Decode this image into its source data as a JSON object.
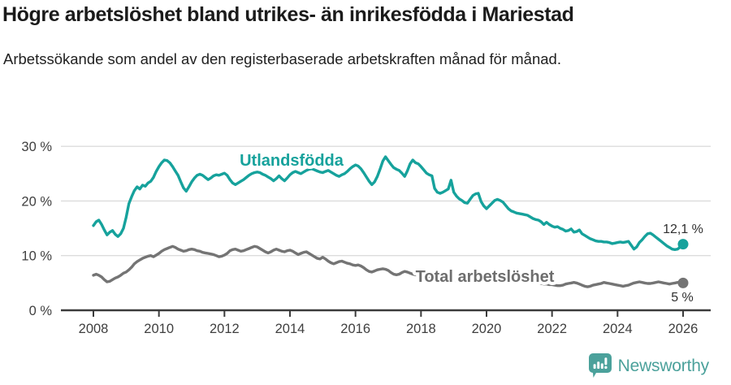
{
  "header": {
    "title": "Högre arbetslöshet bland utrikes- än inrikesfödda i Mariestad",
    "subtitle": "Arbetssökande som andel av den registerbaserade arbetskraften månad för månad."
  },
  "footer": {
    "brand": "Newsworthy"
  },
  "colors": {
    "teal": "#16a29c",
    "gray": "#747474",
    "gray_label": "#6e6e6e",
    "axis": "#3b3b3b",
    "grid": "#dcdcdc",
    "tick_text": "#3f3f3f",
    "end_label_text": "#2f2f2f",
    "logo_teal": "#4ba19b"
  },
  "chart_data": {
    "type": "line",
    "title": "Högre arbetslöshet bland utrikes- än inrikesfödda i Mariestad",
    "subtitle": "Arbetssökande som andel av den registerbaserade arbetskraften månad för månad.",
    "unit": "%",
    "grid": true,
    "legend_position": "inline-labels",
    "ylim": [
      0,
      32
    ],
    "xlim": [
      2007,
      2026.85
    ],
    "y_axis": {
      "ticks": [
        {
          "value": 0,
          "label": "0 %"
        },
        {
          "value": 10,
          "label": "10 %"
        },
        {
          "value": 20,
          "label": "20 %"
        },
        {
          "value": 30,
          "label": "30 %"
        }
      ]
    },
    "x_axis": {
      "ticks": [
        {
          "value": 2008,
          "label": "2008"
        },
        {
          "value": 2010,
          "label": "2010"
        },
        {
          "value": 2012,
          "label": "2012"
        },
        {
          "value": 2014,
          "label": "2014"
        },
        {
          "value": 2016,
          "label": "2016"
        },
        {
          "value": 2018,
          "label": "2018"
        },
        {
          "value": 2020,
          "label": "2020"
        },
        {
          "value": 2022,
          "label": "2022"
        },
        {
          "value": 2024,
          "label": "2024"
        },
        {
          "value": 2026,
          "label": "2026"
        }
      ]
    },
    "series": [
      {
        "id": "utlandsfodda",
        "name": "Utlandsfödda",
        "color": "#16a29c",
        "label_color": "#16a29c",
        "end_label": "12,1 %",
        "end_value": 12.1,
        "start_year": 2008,
        "points_per_year": 12,
        "values": [
          15.5,
          16.2,
          16.5,
          15.7,
          14.7,
          13.8,
          14.3,
          14.6,
          13.9,
          13.5,
          14.0,
          15.0,
          17.0,
          19.5,
          20.8,
          21.9,
          22.6,
          22.2,
          22.9,
          22.7,
          23.3,
          23.6,
          24.3,
          25.4,
          26.3,
          27.0,
          27.5,
          27.4,
          27.0,
          26.3,
          25.5,
          24.7,
          23.5,
          22.4,
          21.8,
          22.6,
          23.5,
          24.2,
          24.7,
          24.9,
          24.7,
          24.3,
          23.9,
          24.2,
          24.6,
          24.8,
          24.7,
          24.9,
          25.1,
          24.7,
          23.9,
          23.3,
          23.0,
          23.3,
          23.6,
          23.9,
          24.3,
          24.7,
          25.0,
          25.2,
          25.3,
          25.2,
          24.9,
          24.7,
          24.4,
          24.1,
          23.7,
          24.1,
          24.6,
          24.1,
          23.7,
          24.2,
          24.8,
          25.2,
          25.4,
          25.2,
          25.0,
          25.3,
          25.6,
          25.8,
          25.9,
          25.7,
          25.5,
          25.3,
          25.2,
          25.4,
          25.6,
          25.3,
          25.0,
          24.7,
          24.5,
          24.8,
          25.0,
          25.4,
          25.9,
          26.3,
          26.6,
          26.4,
          25.9,
          25.2,
          24.4,
          23.6,
          23.0,
          23.5,
          24.5,
          25.8,
          27.3,
          28.1,
          27.4,
          26.7,
          26.1,
          25.8,
          25.6,
          25.1,
          24.5,
          25.5,
          26.8,
          27.5,
          27.0,
          26.8,
          26.3,
          25.7,
          25.1,
          24.8,
          24.6,
          22.3,
          21.6,
          21.4,
          21.6,
          21.9,
          22.2,
          23.8,
          21.6,
          20.9,
          20.4,
          20.1,
          19.7,
          19.6,
          20.3,
          21.0,
          21.3,
          21.4,
          19.9,
          19.1,
          18.6,
          19.1,
          19.6,
          20.1,
          20.3,
          20.1,
          19.8,
          19.2,
          18.6,
          18.2,
          18.0,
          17.8,
          17.7,
          17.6,
          17.5,
          17.4,
          17.1,
          16.8,
          16.6,
          16.5,
          16.2,
          15.7,
          16.1,
          15.7,
          15.4,
          15.2,
          15.3,
          15.0,
          14.8,
          14.5,
          14.6,
          14.9,
          14.3,
          14.4,
          14.7,
          14.0,
          13.7,
          13.4,
          13.1,
          12.9,
          12.7,
          12.6,
          12.6,
          12.5,
          12.5,
          12.4,
          12.2,
          12.3,
          12.4,
          12.5,
          12.4,
          12.5,
          12.6,
          11.9,
          11.2,
          11.6,
          12.4,
          12.9,
          13.5,
          14.0,
          14.1,
          13.8,
          13.4,
          13.0,
          12.6,
          12.2,
          11.8,
          11.5,
          11.2,
          11.1,
          11.2,
          11.6,
          12.1
        ]
      },
      {
        "id": "total",
        "name": "Total arbetslöshet",
        "color": "#747474",
        "label_color": "#6e6e6e",
        "end_label": "5 %",
        "end_value": 5,
        "start_year": 2008,
        "points_per_year": 12,
        "values": [
          6.4,
          6.6,
          6.4,
          6.1,
          5.6,
          5.2,
          5.3,
          5.6,
          5.9,
          6.1,
          6.4,
          6.8,
          7.0,
          7.4,
          7.9,
          8.5,
          8.9,
          9.2,
          9.5,
          9.7,
          9.9,
          10.0,
          9.8,
          10.1,
          10.4,
          10.8,
          11.1,
          11.3,
          11.5,
          11.7,
          11.5,
          11.2,
          11.0,
          10.8,
          10.9,
          11.1,
          11.2,
          11.1,
          10.9,
          10.8,
          10.6,
          10.5,
          10.4,
          10.3,
          10.2,
          10.0,
          9.8,
          9.9,
          10.1,
          10.4,
          10.9,
          11.1,
          11.2,
          11.0,
          10.8,
          10.9,
          11.1,
          11.3,
          11.5,
          11.7,
          11.6,
          11.3,
          11.0,
          10.7,
          10.5,
          10.7,
          11.0,
          11.2,
          11.0,
          10.8,
          10.7,
          10.9,
          11.0,
          10.8,
          10.5,
          10.2,
          10.4,
          10.6,
          10.7,
          10.4,
          10.1,
          9.8,
          9.5,
          9.4,
          9.7,
          9.4,
          9.0,
          8.7,
          8.5,
          8.7,
          8.9,
          9.0,
          8.8,
          8.6,
          8.5,
          8.3,
          8.2,
          8.3,
          8.1,
          7.8,
          7.4,
          7.1,
          7.0,
          7.2,
          7.4,
          7.5,
          7.6,
          7.5,
          7.3,
          6.9,
          6.6,
          6.5,
          6.6,
          6.9,
          7.1,
          7.0,
          6.8,
          6.6,
          6.5,
          6.4,
          6.3,
          6.2,
          6.1,
          6.0,
          5.9,
          5.8,
          5.8,
          5.7,
          5.7,
          5.6,
          5.6,
          5.5,
          5.5,
          5.4,
          5.4,
          5.3,
          5.3,
          5.2,
          5.2,
          5.3,
          5.3,
          5.4,
          5.4,
          5.5,
          5.5,
          5.6,
          5.8,
          6.0,
          6.1,
          6.2,
          6.1,
          6.0,
          5.9,
          5.8,
          5.7,
          5.6,
          5.5,
          5.4,
          5.3,
          5.2,
          5.1,
          5.0,
          5.0,
          4.9,
          4.9,
          4.8,
          4.8,
          4.7,
          4.7,
          4.6,
          4.5,
          4.5,
          4.6,
          4.8,
          4.9,
          5.0,
          5.1,
          5.0,
          4.8,
          4.6,
          4.4,
          4.3,
          4.4,
          4.6,
          4.7,
          4.8,
          4.9,
          5.1,
          5.0,
          4.9,
          4.8,
          4.7,
          4.6,
          4.5,
          4.4,
          4.5,
          4.6,
          4.8,
          5.0,
          5.1,
          5.2,
          5.1,
          5.0,
          4.9,
          4.9,
          5.0,
          5.1,
          5.2,
          5.1,
          5.0,
          4.9,
          4.8,
          4.9,
          5.0,
          5.1,
          5.0,
          5.0
        ]
      }
    ]
  }
}
